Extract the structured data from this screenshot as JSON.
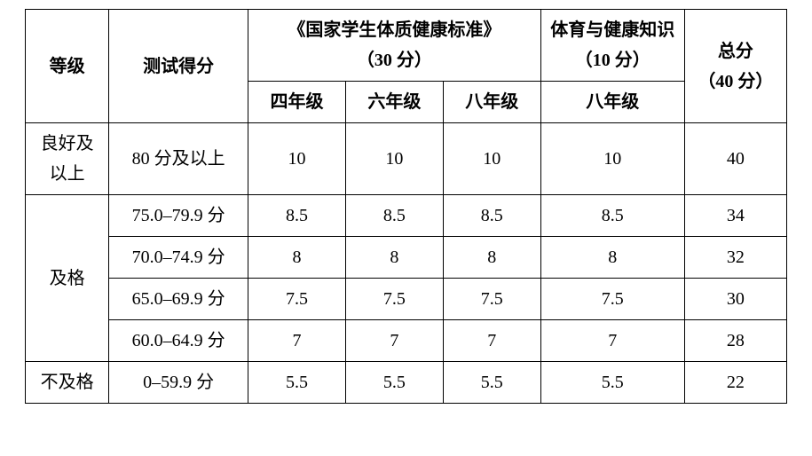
{
  "table": {
    "headers": {
      "level": "等级",
      "test_score": "测试得分",
      "standard_title_l1": "《国家学生体质健康标准》",
      "standard_title_l2": "（30 分）",
      "health_title_l1": "体育与健康知识",
      "health_title_l2": "（10 分）",
      "total_l1": "总分",
      "total_l2": "（40 分）",
      "grade4": "四年级",
      "grade6": "六年级",
      "grade8a": "八年级",
      "grade8b": "八年级"
    },
    "rows": [
      {
        "level_l1": "良好及",
        "level_l2": "以上",
        "range": "80 分及以上",
        "g4": "10",
        "g6": "10",
        "g8a": "10",
        "g8b": "10",
        "total": "40"
      },
      {
        "level": "及格",
        "range": "75.0–79.9 分",
        "g4": "8.5",
        "g6": "8.5",
        "g8a": "8.5",
        "g8b": "8.5",
        "total": "34"
      },
      {
        "range": "70.0–74.9 分",
        "g4": "8",
        "g6": "8",
        "g8a": "8",
        "g8b": "8",
        "total": "32"
      },
      {
        "range": "65.0–69.9 分",
        "g4": "7.5",
        "g6": "7.5",
        "g8a": "7.5",
        "g8b": "7.5",
        "total": "30"
      },
      {
        "range": "60.0–64.9 分",
        "g4": "7",
        "g6": "7",
        "g8a": "7",
        "g8b": "7",
        "total": "28"
      },
      {
        "level": "不及格",
        "range": "0–59.9 分",
        "g4": "5.5",
        "g6": "5.5",
        "g8a": "5.5",
        "g8b": "5.5",
        "total": "22"
      }
    ]
  }
}
